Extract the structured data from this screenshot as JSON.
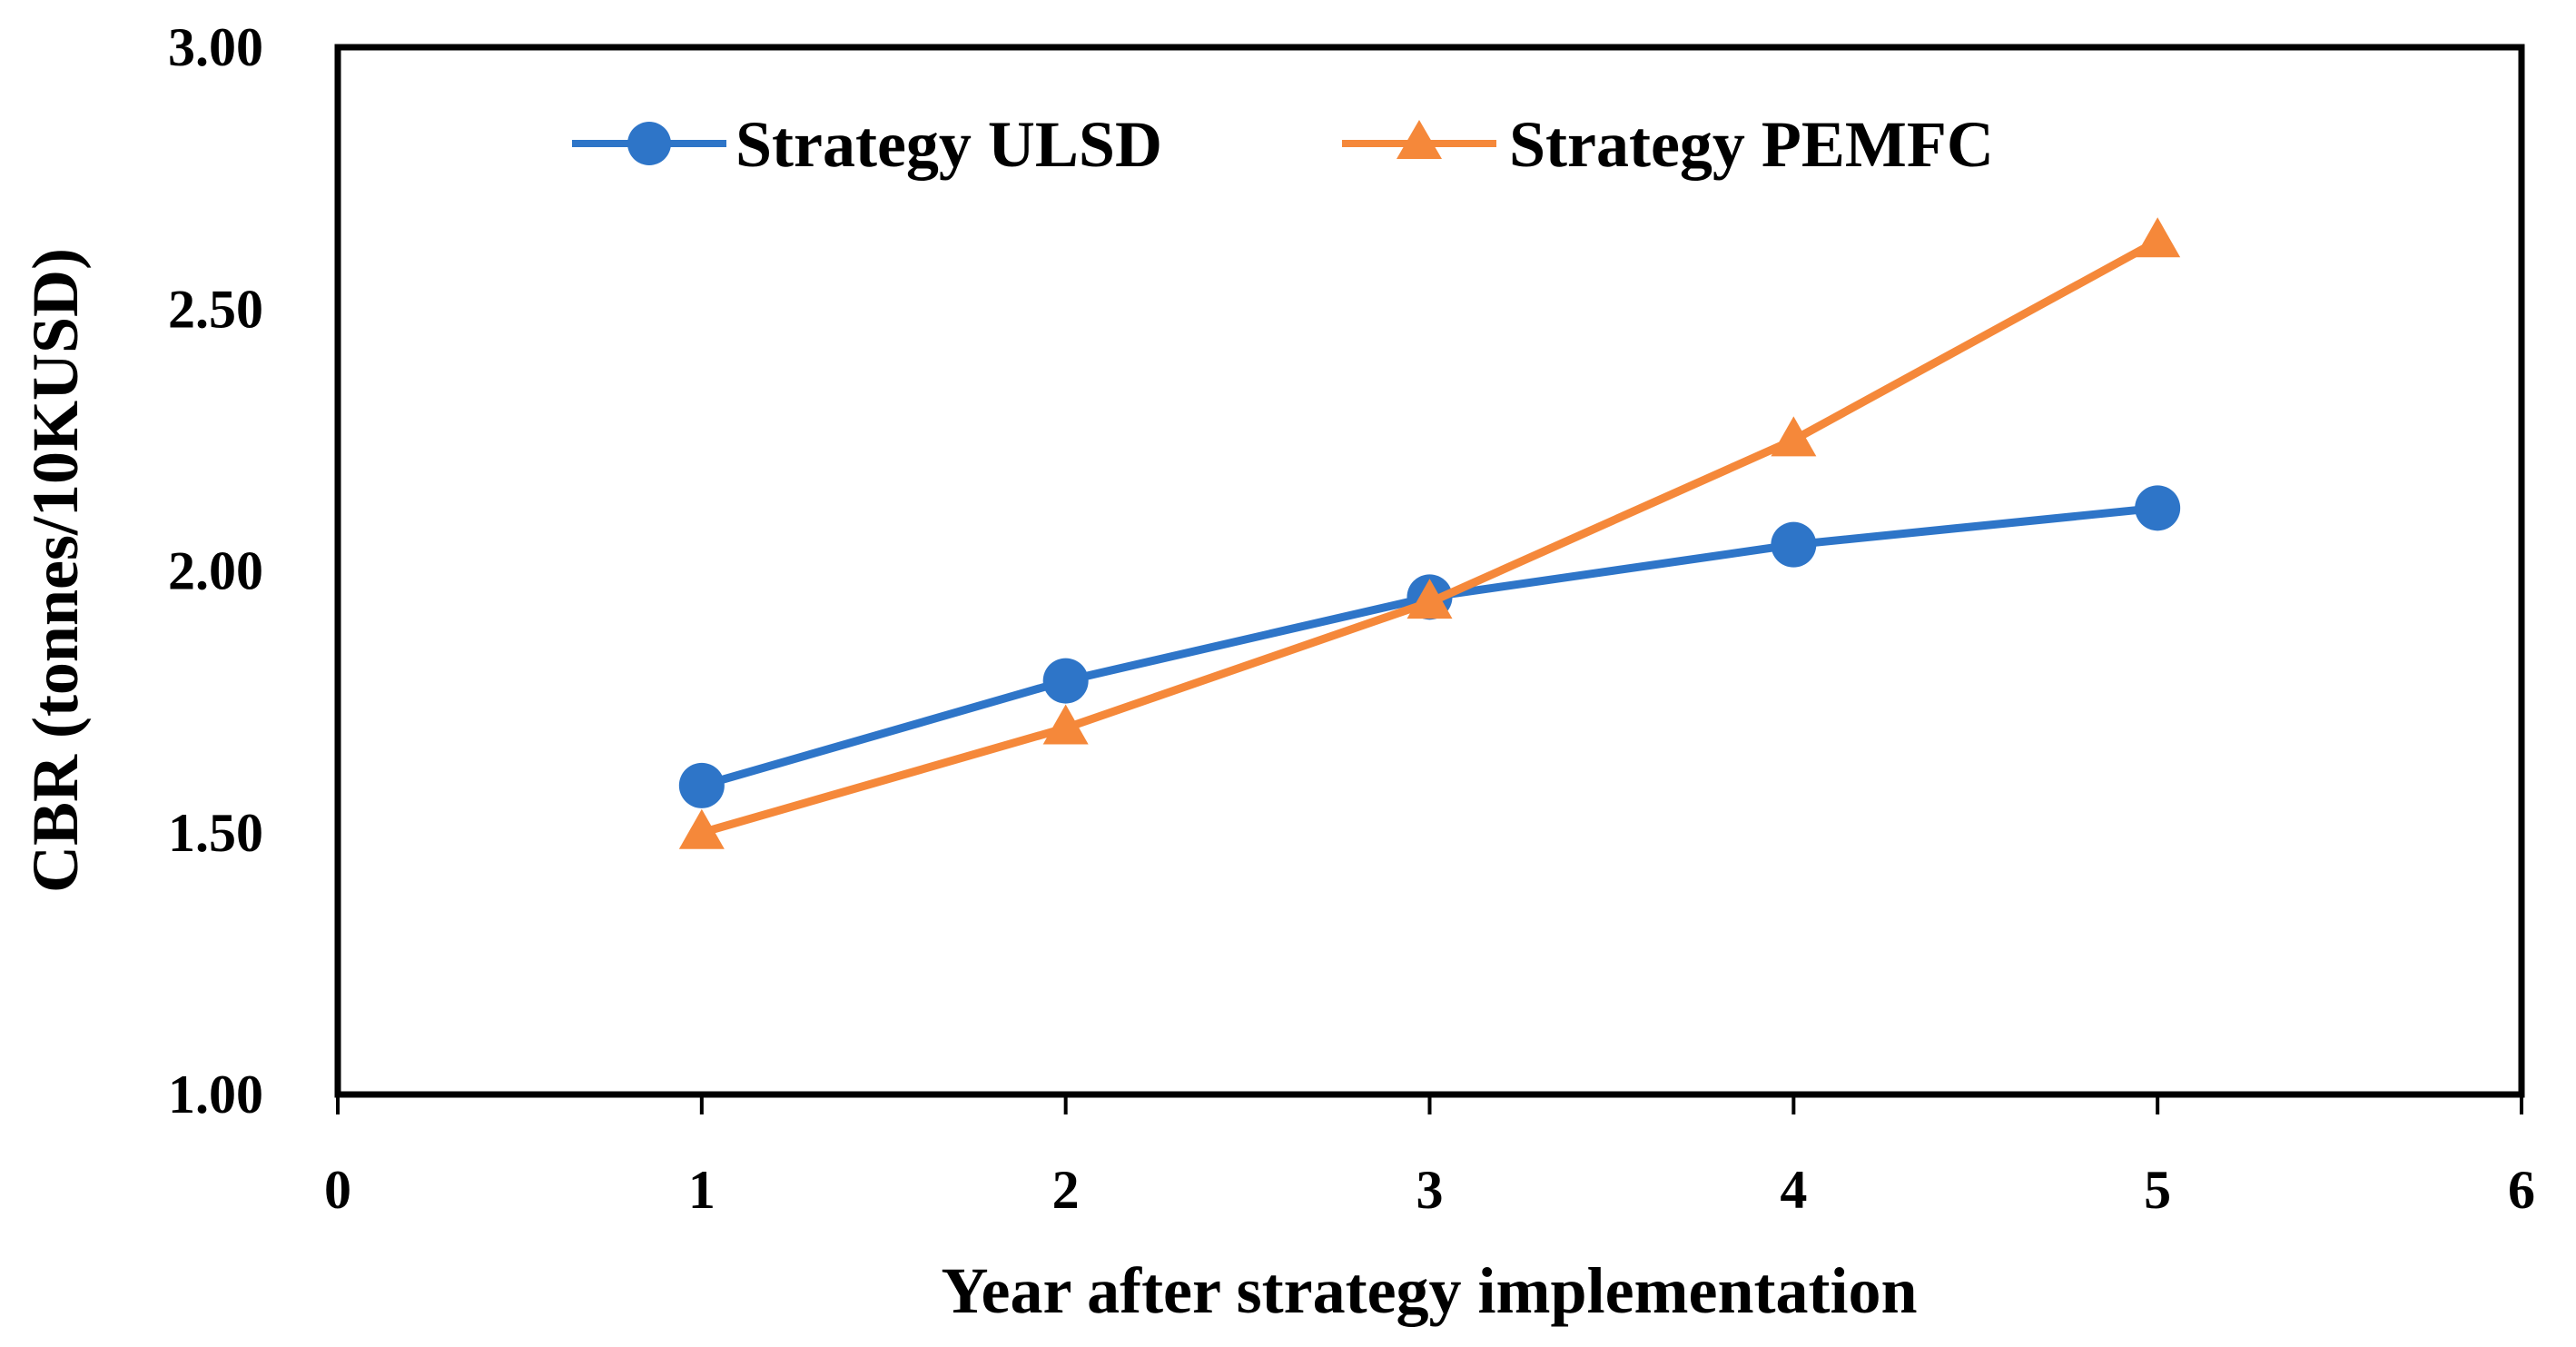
{
  "chart_data": {
    "type": "line",
    "title": "",
    "xlabel": "Year after strategy implementation",
    "ylabel": "CBR (tonnes/10KUSD)",
    "xlim": [
      0,
      6
    ],
    "ylim": [
      1.0,
      3.0
    ],
    "x_ticks": [
      "0",
      "1",
      "2",
      "3",
      "4",
      "5",
      "6"
    ],
    "y_ticks": [
      "1.00",
      "1.50",
      "2.00",
      "2.50",
      "3.00"
    ],
    "grid": false,
    "legend_position": "top-center",
    "x": [
      1,
      2,
      3,
      4,
      5
    ],
    "series": [
      {
        "name": "Strategy ULSD",
        "values": [
          1.59,
          1.79,
          1.95,
          2.05,
          2.12
        ],
        "color": "#2E75C8",
        "marker": "circle"
      },
      {
        "name": "Strategy PEMFC",
        "values": [
          1.5,
          1.7,
          1.94,
          2.25,
          2.63
        ],
        "color": "#F5883A",
        "marker": "triangle"
      }
    ]
  }
}
